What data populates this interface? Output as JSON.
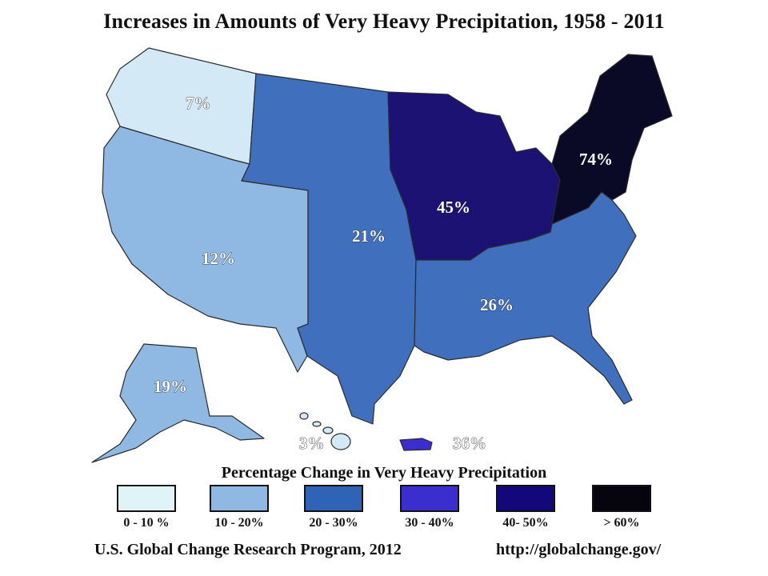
{
  "title": "Increases in Amounts of Very Heavy Precipitation, 1958 - 2011",
  "regions": [
    {
      "name": "Northwest",
      "label": "7%",
      "color": "#d3e9f6"
    },
    {
      "name": "Southwest",
      "label": "12%",
      "color": "#8fb8e3"
    },
    {
      "name": "Great Plains",
      "label": "21%",
      "color": "#3f6fbd"
    },
    {
      "name": "Midwest",
      "label": "45%",
      "color": "#1c1273"
    },
    {
      "name": "Northeast",
      "label": "74%",
      "color": "#0a0a26"
    },
    {
      "name": "Southeast",
      "label": "26%",
      "color": "#3f6fbd"
    },
    {
      "name": "Alaska",
      "label": "19%",
      "color": "#8fb8e3"
    },
    {
      "name": "Hawaii",
      "label": "3%",
      "color": "#d3e9f6"
    },
    {
      "name": "Puerto Rico",
      "label": "36%",
      "color": "#3b2ecf"
    }
  ],
  "legend": {
    "title": "Percentage Change in Very Heavy Precipitation",
    "items": [
      {
        "label": "0 - 10 %",
        "color": "#e0f3f8"
      },
      {
        "label": "10 - 20%",
        "color": "#8fb8e3"
      },
      {
        "label": "20 - 30%",
        "color": "#2f63b6"
      },
      {
        "label": "30 - 40%",
        "color": "#3b2ecf"
      },
      {
        "label": "40- 50%",
        "color": "#12087a"
      },
      {
        "label": "> 60%",
        "color": "#05040f"
      }
    ]
  },
  "footer": {
    "source": "U.S. Global Change Research Program, 2012",
    "url": "http://globalchange.gov/"
  }
}
